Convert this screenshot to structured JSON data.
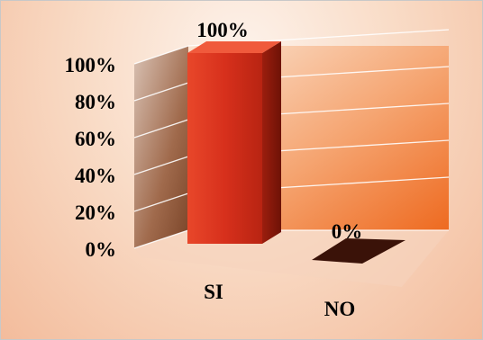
{
  "chart_data": {
    "type": "bar",
    "categories": [
      "SI",
      "NO"
    ],
    "values": [
      100,
      0
    ],
    "data_labels": [
      "100%",
      "0%"
    ],
    "y_tick_labels": [
      "0%",
      "20%",
      "40%",
      "60%",
      "80%",
      "100%"
    ],
    "y_ticks": [
      0,
      20,
      40,
      60,
      80,
      100
    ],
    "ylim": [
      0,
      100
    ],
    "title": "",
    "xlabel": "",
    "ylabel": "",
    "grid": true,
    "legend": "none",
    "three_d": true,
    "colors": {
      "bar_front": "#d7301c",
      "bar_side": "#8e1a0c",
      "bar_top": "#f05a3c",
      "empty_bar": "#3a1208",
      "back_wall": "#f07a30",
      "side_wall": "#8a5a40",
      "gridline": "#ffffff"
    }
  }
}
